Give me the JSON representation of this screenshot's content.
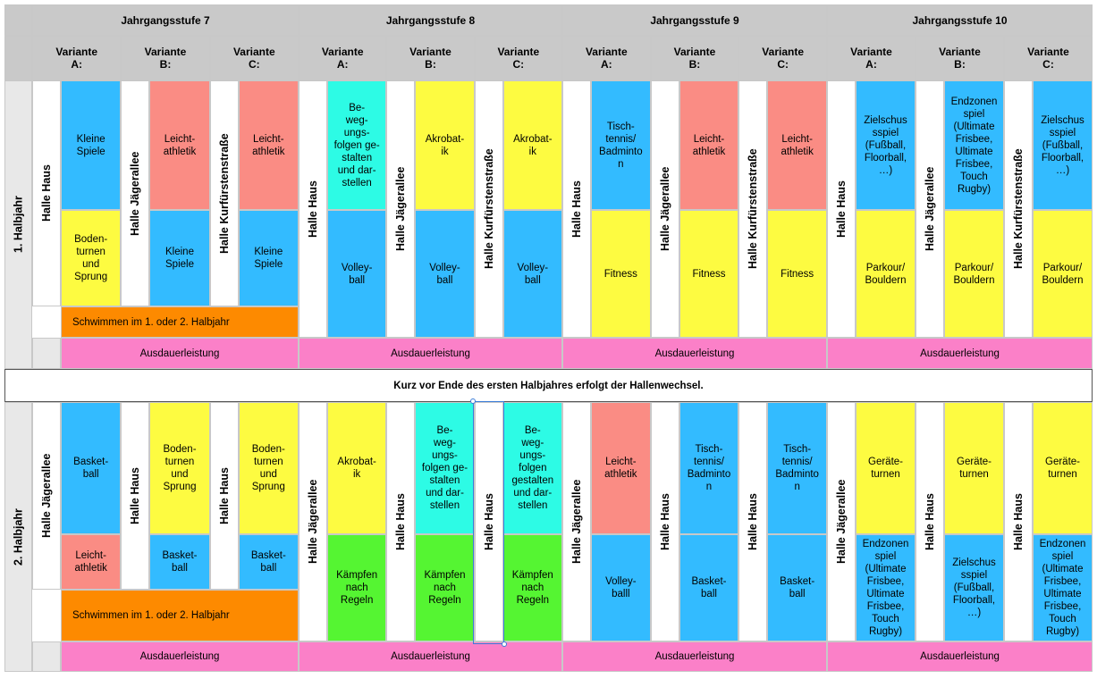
{
  "colors": {
    "blue": "#33bbff",
    "salmon": "#fa8c84",
    "yellow": "#fdfb41",
    "cyan": "#2dfbe5",
    "green": "#55f532",
    "orange": "#fd8a00",
    "pink": "#fb80c8",
    "header_gray": "#c9c9c9",
    "light_gray": "#e8e8e8",
    "white": "#ffffff"
  },
  "grades": [
    "Jahrgangsstufe 7",
    "Jahrgangsstufe 8",
    "Jahrgangsstufe 9",
    "Jahrgangsstufe 10"
  ],
  "variants": [
    "Variante\nA:",
    "Variante\nB:",
    "Variante\nC:"
  ],
  "halfyears": [
    "1. Halbjahr",
    "2. Halbjahr"
  ],
  "halls": {
    "haus": "Halle Haus",
    "jaeger": "Halle Jägerallee",
    "kurf": "Halle Kurfürstenstraße"
  },
  "common": {
    "ausdauer": "Ausdauerleistung",
    "schwimmen": "Schwimmen im 1. oder 2. Halbjahr",
    "wechsel": "Kurz vor Ende des ersten Halbjahres erfolgt der Hallenwechsel."
  },
  "sports": {
    "kleine": "Kleine\nSpiele",
    "leicht": "Leicht-\nathletik",
    "boden": "Boden-\nturnen\nund\nSprung",
    "beweg_a": "Be-\nweg-\nungs-\nfolgen ge-\nstalten\nund dar-\nstellen",
    "beweg_b": "Be-\nweg-\nungs-\nfolgen\ngestalten\nund dar-\nstellen",
    "akro": "Akrobat-\nik",
    "volley": "Volley-\nball",
    "volley2": "Volley-\nballl",
    "tisch": "Tisch-\ntennis/\nBadminto\nn",
    "fitness": "Fitness",
    "zielschuss": "Zielschus\nsspiel\n(Fußball,\nFloorball,\n…)",
    "endzonen": "Endzonen\nspiel\n(Ultimate\nFrisbee,\nUltimate\nFrisbee,\nTouch\nRugby)",
    "parkour": "Parkour/\nBouldern",
    "basket": "Basket-\nball",
    "kaempfen": "Kämpfen\nnach\nRegeln",
    "geraete": "Geräte-\nturnen"
  }
}
